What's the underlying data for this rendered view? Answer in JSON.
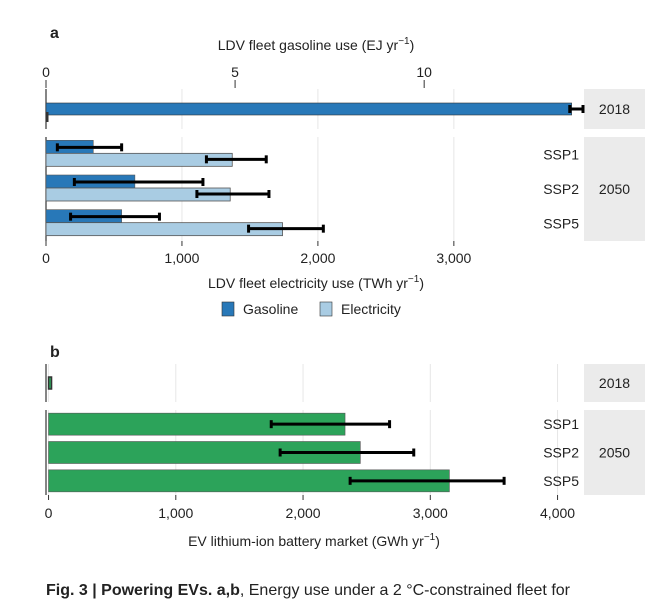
{
  "colors": {
    "gasoline": "#2878b8",
    "electricity": "#a9cce3",
    "battery": "#2ca35a",
    "panel_bg": "#ffffff",
    "strip_bg": "#ebebeb",
    "grid": "#e6e6e6",
    "errorbar": "#000000"
  },
  "legend": {
    "gasoline": "Gasoline",
    "electricity": "Electricity"
  },
  "caption": {
    "prefix": "Fig. 3 | Powering EVs. ",
    "panels": "a,b",
    "text": ", Energy use under a 2 °C-constrained fleet for"
  },
  "chart_data": [
    {
      "type": "bar",
      "orientation": "horizontal",
      "panel_label": "a",
      "title": "",
      "top_axis_label": "LDV fleet gasoline use (EJ yr⁻¹)",
      "top_xlim": [
        0,
        14.2
      ],
      "top_ticks": [
        0,
        5,
        10
      ],
      "top_tick_labels": [
        "0",
        "5",
        "10"
      ],
      "xlabel": "LDV fleet electricity use (TWh yr⁻¹)",
      "xlim": [
        0,
        3950
      ],
      "x_ticks": [
        0,
        1000,
        2000,
        3000
      ],
      "x_tick_labels": [
        "0",
        "1,000",
        "2,000",
        "3,000"
      ],
      "grid": true,
      "legend_position": "bottom",
      "facets": [
        {
          "strip": "2018",
          "rows": [
            {
              "label": "",
              "gasoline": 13.9,
              "gasoline_err": [
                13.85,
                14.2
              ],
              "electricity": 5,
              "electricity_err": [
                5,
                5
              ]
            }
          ]
        },
        {
          "strip": "2050",
          "rows": [
            {
              "label": "SSP1",
              "gasoline": 1.25,
              "gasoline_err": [
                0.3,
                2.0
              ],
              "electricity": 1370,
              "electricity_err": [
                1180,
                1620
              ]
            },
            {
              "label": "SSP2",
              "gasoline": 2.35,
              "gasoline_err": [
                0.75,
                4.15
              ],
              "electricity": 1355,
              "electricity_err": [
                1110,
                1640
              ]
            },
            {
              "label": "SSP5",
              "gasoline": 2.0,
              "gasoline_err": [
                0.65,
                3.0
              ],
              "electricity": 1740,
              "electricity_err": [
                1490,
                2040
              ]
            }
          ]
        }
      ]
    },
    {
      "type": "bar",
      "orientation": "horizontal",
      "panel_label": "b",
      "title": "",
      "xlabel": "EV lithium-ion battery market (GWh yr⁻¹)",
      "xlim": [
        -20,
        4200
      ],
      "x_ticks": [
        0,
        1000,
        2000,
        3000,
        4000
      ],
      "x_tick_labels": [
        "0",
        "1,000",
        "2,000",
        "3,000",
        "4,000"
      ],
      "grid": true,
      "facets": [
        {
          "strip": "2018",
          "rows": [
            {
              "label": "",
              "value": 15,
              "err": [
                5,
                25
              ]
            }
          ]
        },
        {
          "strip": "2050",
          "rows": [
            {
              "label": "SSP1",
              "value": 2330,
              "err": [
                1750,
                2680
              ]
            },
            {
              "label": "SSP2",
              "value": 2450,
              "err": [
                1820,
                2870
              ]
            },
            {
              "label": "SSP5",
              "value": 3150,
              "err": [
                2370,
                3580
              ]
            }
          ]
        }
      ]
    }
  ]
}
